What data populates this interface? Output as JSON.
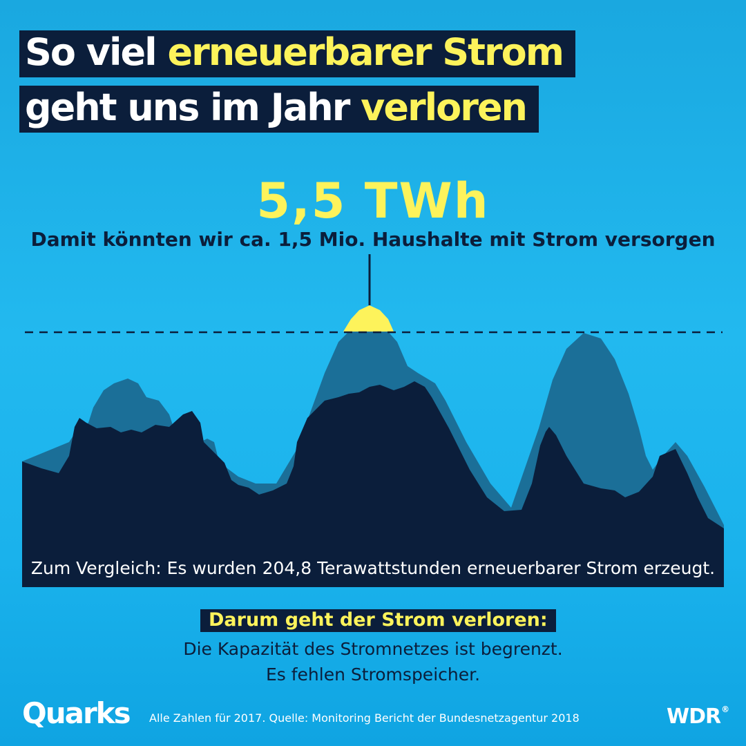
{
  "title": {
    "line1_white": "So viel",
    "line1_yellow": "erneuerbarer Strom",
    "line2_white": "geht uns im Jahr",
    "line2_yellow": "verloren"
  },
  "highlight": {
    "value": "5,5 TWh",
    "subtitle": "Damit könnten wir ca. 1,5 Mio. Haushalte mit Strom versorgen"
  },
  "comparison": "Zum Vergleich: Es wurden 204,8 Terawattstunden erneuerbarer Strom erzeugt.",
  "reasons": {
    "heading": "Darum geht der Strom verloren:",
    "items": [
      "Die Kapazität des Stromnetzes ist begrenzt.",
      "Es fehlen Stromspeicher."
    ]
  },
  "footer": {
    "logo_left": "Quarks",
    "source": "Alle Zahlen für 2017. Quelle: Monitoring Bericht der Bundesnetzagentur 2018",
    "logo_right": "WDR",
    "logo_right_mark": "®"
  },
  "colors": {
    "background": "#1fb4ec",
    "navy": "#0b1e3b",
    "yellow": "#fdf35b",
    "shadow_mountain": "#1b6f98",
    "white": "#ffffff"
  },
  "icons": {
    "lamp": "pendant-lamp-icon",
    "mountains": "mountain-silhouette"
  }
}
